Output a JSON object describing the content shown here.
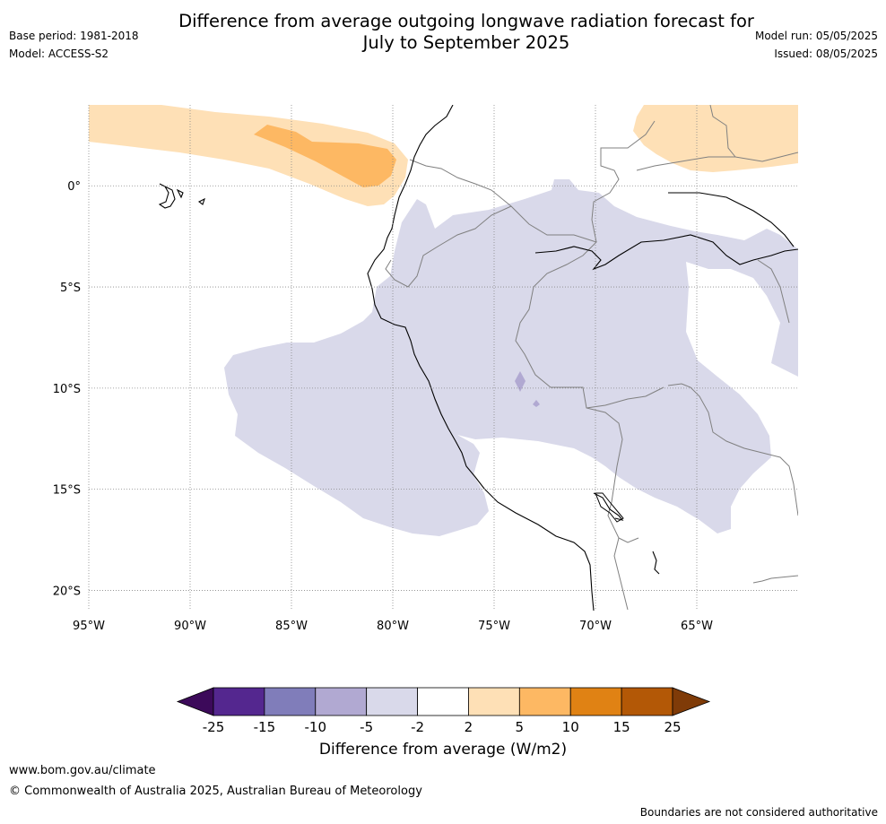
{
  "title_line1": "Difference from average outgoing longwave radiation forecast for",
  "title_line2": "July to September 2025",
  "meta": {
    "base_period": "Base period: 1981-2018",
    "model": "Model: ACCESS-S2",
    "model_run": "Model run: 05/05/2025",
    "issued": "Issued: 08/05/2025"
  },
  "map": {
    "lon_range": [
      -95,
      -60
    ],
    "lat_range": [
      -21,
      4
    ],
    "lon_ticks": [
      {
        "value": -95,
        "label": "95°W"
      },
      {
        "value": -90,
        "label": "90°W"
      },
      {
        "value": -85,
        "label": "85°W"
      },
      {
        "value": -80,
        "label": "80°W"
      },
      {
        "value": -75,
        "label": "75°W"
      },
      {
        "value": -70,
        "label": "70°W"
      },
      {
        "value": -65,
        "label": "65°W"
      }
    ],
    "lat_ticks": [
      {
        "value": 0,
        "label": "0°"
      },
      {
        "value": -5,
        "label": "5°S"
      },
      {
        "value": -10,
        "label": "10°S"
      },
      {
        "value": -15,
        "label": "15°S"
      },
      {
        "value": -20,
        "label": "20°S"
      }
    ],
    "grid": true
  },
  "colorbar": {
    "ticks": [
      "-25",
      "-15",
      "-10",
      "-5",
      "-2",
      "2",
      "5",
      "10",
      "15",
      "25"
    ],
    "colors": [
      "#3c0a5a",
      "#54278f",
      "#807dba",
      "#b1a9d2",
      "#d9d9ea",
      "#ffffff",
      "#fee0b6",
      "#fdb863",
      "#e08214",
      "#b35806",
      "#7f3b08"
    ],
    "label": "Difference from average (W/m2)"
  },
  "footer": {
    "url": "www.bom.gov.au/climate",
    "copyright": "© Commonwealth of Australia 2025, Australian Bureau of Meteorology",
    "disclaimer": "Boundaries are not considered authoritative"
  }
}
